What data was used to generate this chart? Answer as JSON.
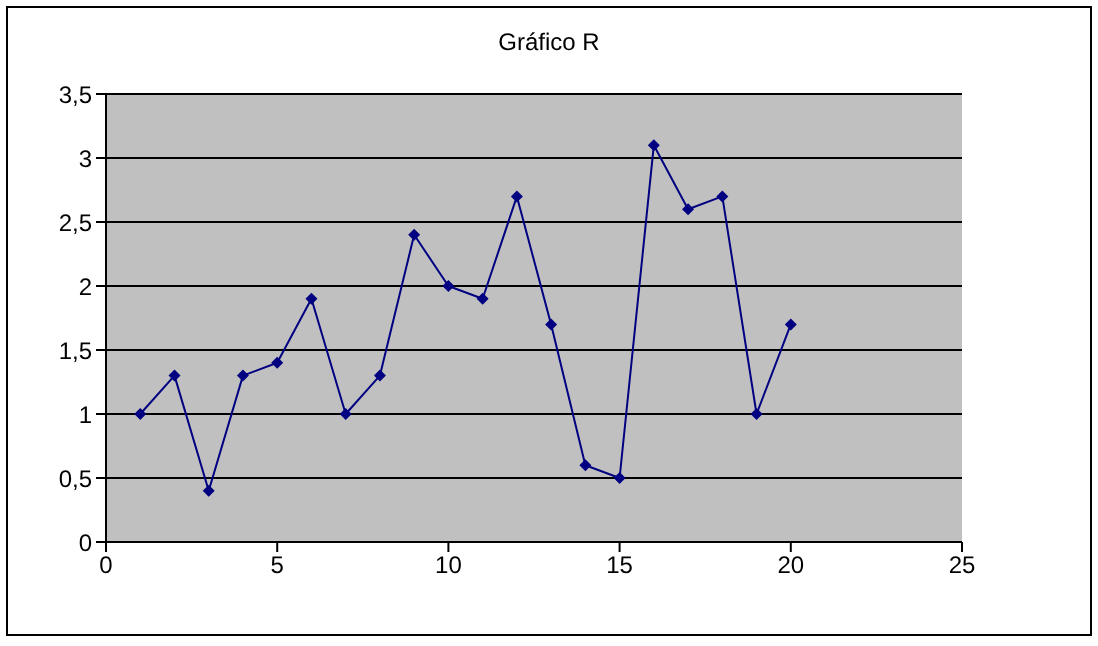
{
  "chart_data": {
    "type": "line",
    "title": "Gráfico R",
    "x": [
      1,
      2,
      3,
      4,
      5,
      6,
      7,
      8,
      9,
      10,
      11,
      12,
      13,
      14,
      15,
      16,
      17,
      18,
      19,
      20
    ],
    "series": [
      {
        "color": "#000080",
        "values": [
          1.0,
          1.3,
          0.4,
          1.3,
          1.4,
          1.9,
          1.0,
          1.3,
          2.4,
          2.0,
          1.9,
          2.7,
          1.7,
          0.6,
          0.5,
          3.1,
          2.6,
          2.7,
          1.0,
          1.7
        ]
      }
    ],
    "xlim": [
      0,
      25
    ],
    "xticks": [
      0,
      5,
      10,
      15,
      20,
      25
    ],
    "ylim": [
      0,
      3.5
    ],
    "yticks": [
      0,
      {
        "value": 0.5,
        "label": "0,5"
      },
      1,
      {
        "value": 1.5,
        "label": "1,5"
      },
      2,
      {
        "value": 2.5,
        "label": "2,5"
      },
      3,
      {
        "value": 3.5,
        "label": "3,5"
      }
    ],
    "grid": "y",
    "marker": "diamond",
    "line_style": "solid"
  }
}
